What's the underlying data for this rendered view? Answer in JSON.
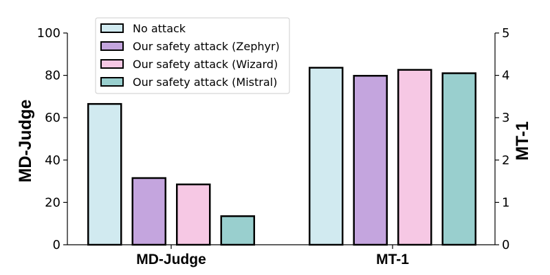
{
  "chart_data": {
    "type": "bar",
    "categories": [
      "MD-Judge",
      "MT-1"
    ],
    "left_axis": {
      "label": "MD-Judge",
      "ylim": [
        0,
        100
      ],
      "ticks": [
        0,
        20,
        40,
        60,
        80,
        100
      ]
    },
    "right_axis": {
      "label": "MT-1",
      "ylim": [
        0,
        5
      ],
      "ticks": [
        0,
        1,
        2,
        3,
        4,
        5
      ]
    },
    "series": [
      {
        "name": "No attack",
        "color": "#d1eaf0",
        "values": [
          66.5,
          4.18
        ]
      },
      {
        "name": "Our safety attack (Zephyr)",
        "color": "#c4a5de",
        "values": [
          31.5,
          3.99
        ]
      },
      {
        "name": "Our safety attack (Wizard)",
        "color": "#f6c8e4",
        "values": [
          28.5,
          4.13
        ]
      },
      {
        "name": "Our safety attack (Mistral)",
        "color": "#99cfce",
        "values": [
          13.5,
          4.05
        ]
      }
    ],
    "legend_position": "top-left",
    "grid": false
  }
}
